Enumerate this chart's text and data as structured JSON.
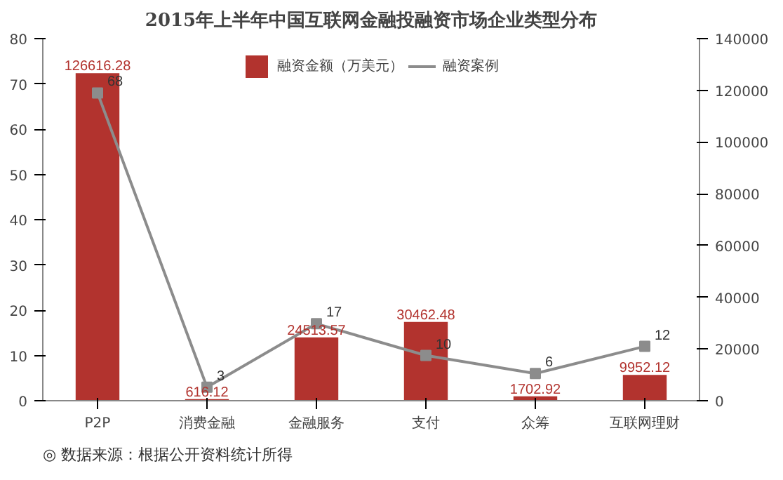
{
  "chart_data": {
    "type": "bar",
    "title": "2015年上半年中国互联网金融投融资市场企业类型分布",
    "categories": [
      "P2P",
      "消费金融",
      "金融服务",
      "支付",
      "众筹",
      "互联网理财"
    ],
    "series": [
      {
        "name": "融资金额（万美元）",
        "axis": "y2",
        "color": "#b2332e",
        "values": [
          126616.28,
          616.12,
          24513.57,
          30462.48,
          1702.92,
          9952.12
        ]
      },
      {
        "name": "融资案例",
        "type": "line",
        "color": "#8c8c8c",
        "values": [
          68,
          3,
          17,
          10,
          6,
          12
        ]
      }
    ],
    "ylim": [
      0,
      80
    ],
    "yticks": [
      0,
      10,
      20,
      30,
      40,
      50,
      60,
      70,
      80
    ],
    "y2lim": [
      0,
      140000
    ],
    "y2ticks": [
      0,
      20000,
      40000,
      60000,
      80000,
      100000,
      120000,
      140000
    ],
    "data_labels": true,
    "legend": "top",
    "marker": "square",
    "grid": false,
    "annotations": [
      "◎ 数据来源：根据公开资料统计所得"
    ]
  }
}
